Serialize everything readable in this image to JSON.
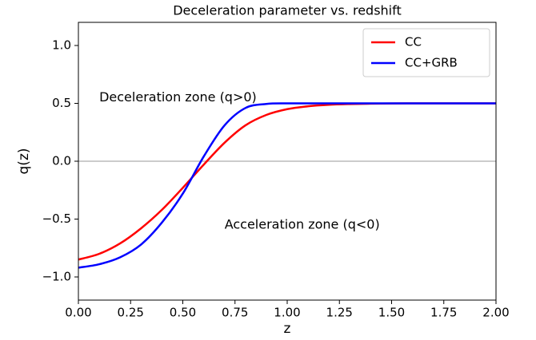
{
  "chart_data": {
    "type": "line",
    "title": "Deceleration parameter vs. redshift",
    "x_label": "z",
    "y_label": "q(z)",
    "annotations": [
      "Deceleration zone (q>0)",
      "Acceleration zone (q<0)"
    ],
    "x": [
      0,
      0.1,
      0.2,
      0.3,
      0.4,
      0.5,
      0.6,
      0.7,
      0.8,
      0.9,
      1.0,
      1.1,
      1.2,
      1.3,
      1.4,
      1.5,
      1.6,
      1.7,
      1.8,
      1.9,
      2.0
    ],
    "series": [
      {
        "name": "CC",
        "color": "#ff0000",
        "values": [
          -0.85,
          -0.8,
          -0.71,
          -0.58,
          -0.42,
          -0.23,
          -0.03,
          0.16,
          0.31,
          0.4,
          0.45,
          0.475,
          0.488,
          0.494,
          0.497,
          0.499,
          0.5,
          0.5,
          0.5,
          0.5,
          0.5
        ]
      },
      {
        "name": "CC+GRB",
        "color": "#0000ff",
        "values": [
          -0.92,
          -0.89,
          -0.83,
          -0.72,
          -0.53,
          -0.28,
          0.04,
          0.31,
          0.46,
          0.495,
          0.5,
          0.5,
          0.5,
          0.5,
          0.5,
          0.5,
          0.5,
          0.5,
          0.5,
          0.5,
          0.5
        ]
      }
    ],
    "xlim": [
      0,
      2
    ],
    "ylim": [
      -1.2,
      1.2
    ],
    "xticks": [
      {
        "value": 0,
        "label": "0.00"
      },
      {
        "value": 0.25,
        "label": "0.25"
      },
      {
        "value": 0.5,
        "label": "0.50"
      },
      {
        "value": 0.75,
        "label": "0.75"
      },
      {
        "value": 1,
        "label": "1.00"
      },
      {
        "value": 1.25,
        "label": "1.25"
      },
      {
        "value": 1.5,
        "label": "1.50"
      },
      {
        "value": 1.75,
        "label": "1.75"
      },
      {
        "value": 2,
        "label": "2.00"
      }
    ],
    "yticks": [
      {
        "value": -1,
        "label": "−1.0"
      },
      {
        "value": -0.5,
        "label": "−0.5"
      },
      {
        "value": 0,
        "label": "0.0"
      },
      {
        "value": 0.5,
        "label": "0.5"
      },
      {
        "value": 1,
        "label": "1.0"
      }
    ],
    "reference_line": 0,
    "legend": "upper right"
  }
}
